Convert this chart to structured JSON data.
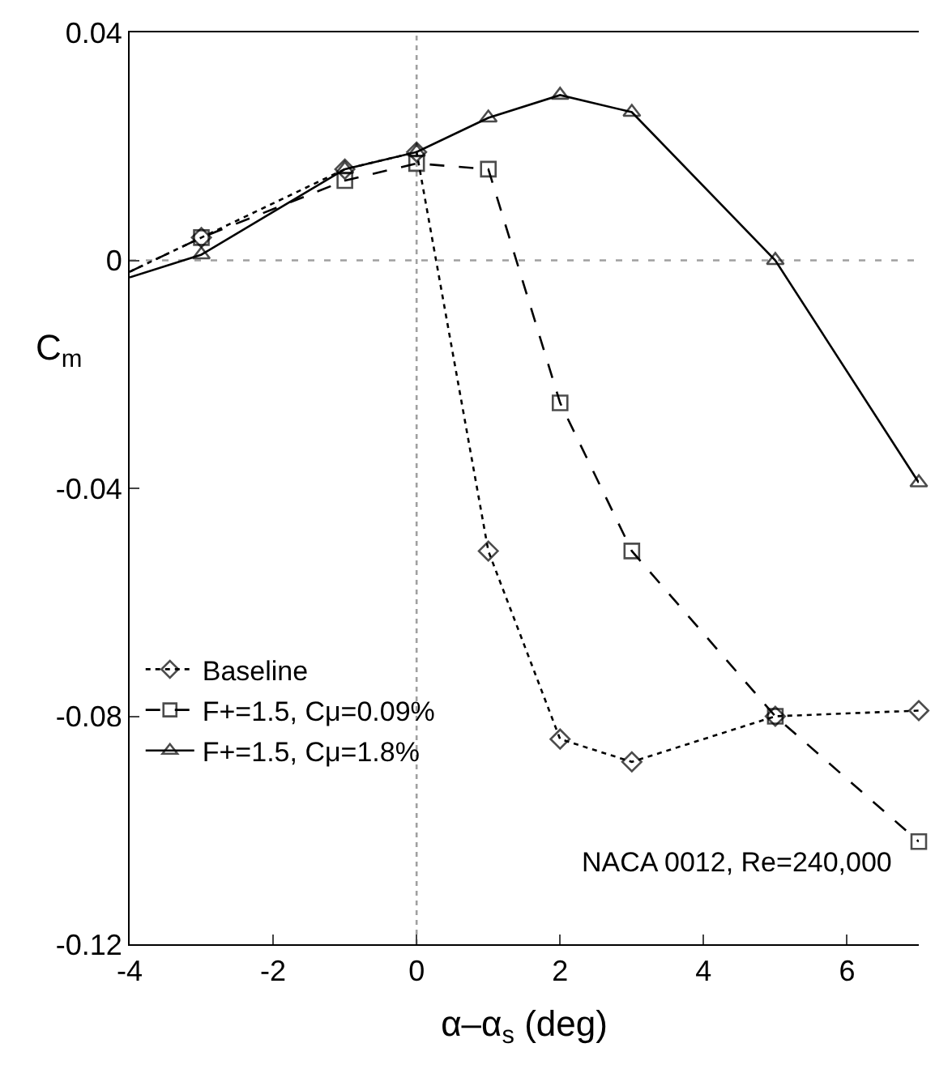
{
  "chart_data": {
    "type": "line",
    "xlabel": "α–α$_{s}$ (deg)",
    "ylabel": "C$_{m}$",
    "x": [
      -4,
      -3,
      -1,
      0,
      1,
      2,
      3,
      5,
      7
    ],
    "series": [
      {
        "name": "Baseline",
        "color": "#000000",
        "marker": "diamond",
        "line_style": "dotted",
        "values": [
          -0.002,
          0.004,
          0.016,
          0.019,
          -0.051,
          -0.084,
          -0.088,
          -0.08,
          -0.079
        ]
      },
      {
        "name": "F+=1.5, Cμ=0.09%",
        "color": "#000000",
        "marker": "square",
        "line_style": "dashed",
        "values": [
          -0.002,
          0.004,
          0.014,
          0.017,
          0.016,
          -0.025,
          -0.051,
          -0.08,
          -0.102
        ]
      },
      {
        "name": "F+=1.5, Cμ=1.8%",
        "color": "#000000",
        "marker": "triangle",
        "line_style": "solid",
        "values": [
          -0.003,
          0.001,
          0.016,
          0.019,
          0.025,
          0.029,
          0.026,
          0.0,
          -0.039
        ]
      }
    ],
    "xlim": [
      -4,
      7
    ],
    "ylim": [
      -0.12,
      0.04
    ],
    "xticks": [
      -4,
      -2,
      0,
      2,
      4,
      6
    ],
    "yticks": [
      -0.12,
      -0.08,
      -0.04,
      0,
      0.04
    ],
    "ref_lines": [
      {
        "axis": "y",
        "value": 0,
        "color": "#a0a0a0",
        "line_style": "dashed"
      },
      {
        "axis": "x",
        "value": 0,
        "color": "#a0a0a0",
        "line_style": "dotted"
      }
    ],
    "annotations": [
      "NACA 0012, Re=240,000"
    ],
    "legend": "bottom left",
    "grid": false
  }
}
